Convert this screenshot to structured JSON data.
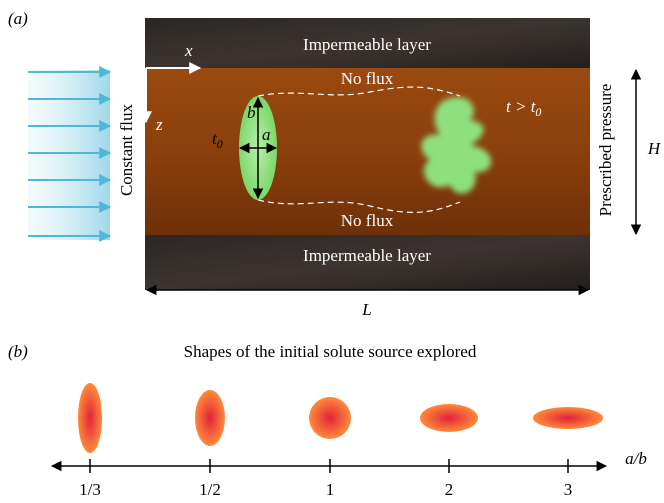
{
  "panel_a": {
    "label": "(a)",
    "top_layer": "Impermeable layer",
    "bottom_layer": "Impermeable layer",
    "top_boundary": "No flux",
    "bottom_boundary": "No flux",
    "axis_x": "x",
    "axis_z": "z",
    "left_boundary": "Constant flux",
    "right_boundary": "Prescribed pressure",
    "initial_time": {
      "main": "t",
      "sub": "0"
    },
    "later_time": {
      "main": "t > t",
      "sub": "0"
    },
    "height_b": "b",
    "width_a": "a",
    "thickness": "H",
    "length": "L"
  },
  "panel_b": {
    "label": "(b)",
    "title": "Shapes of the initial solute source explored",
    "ticks": [
      "1/3",
      "1/2",
      "1",
      "2",
      "3"
    ],
    "axis_label": "a/b"
  }
}
